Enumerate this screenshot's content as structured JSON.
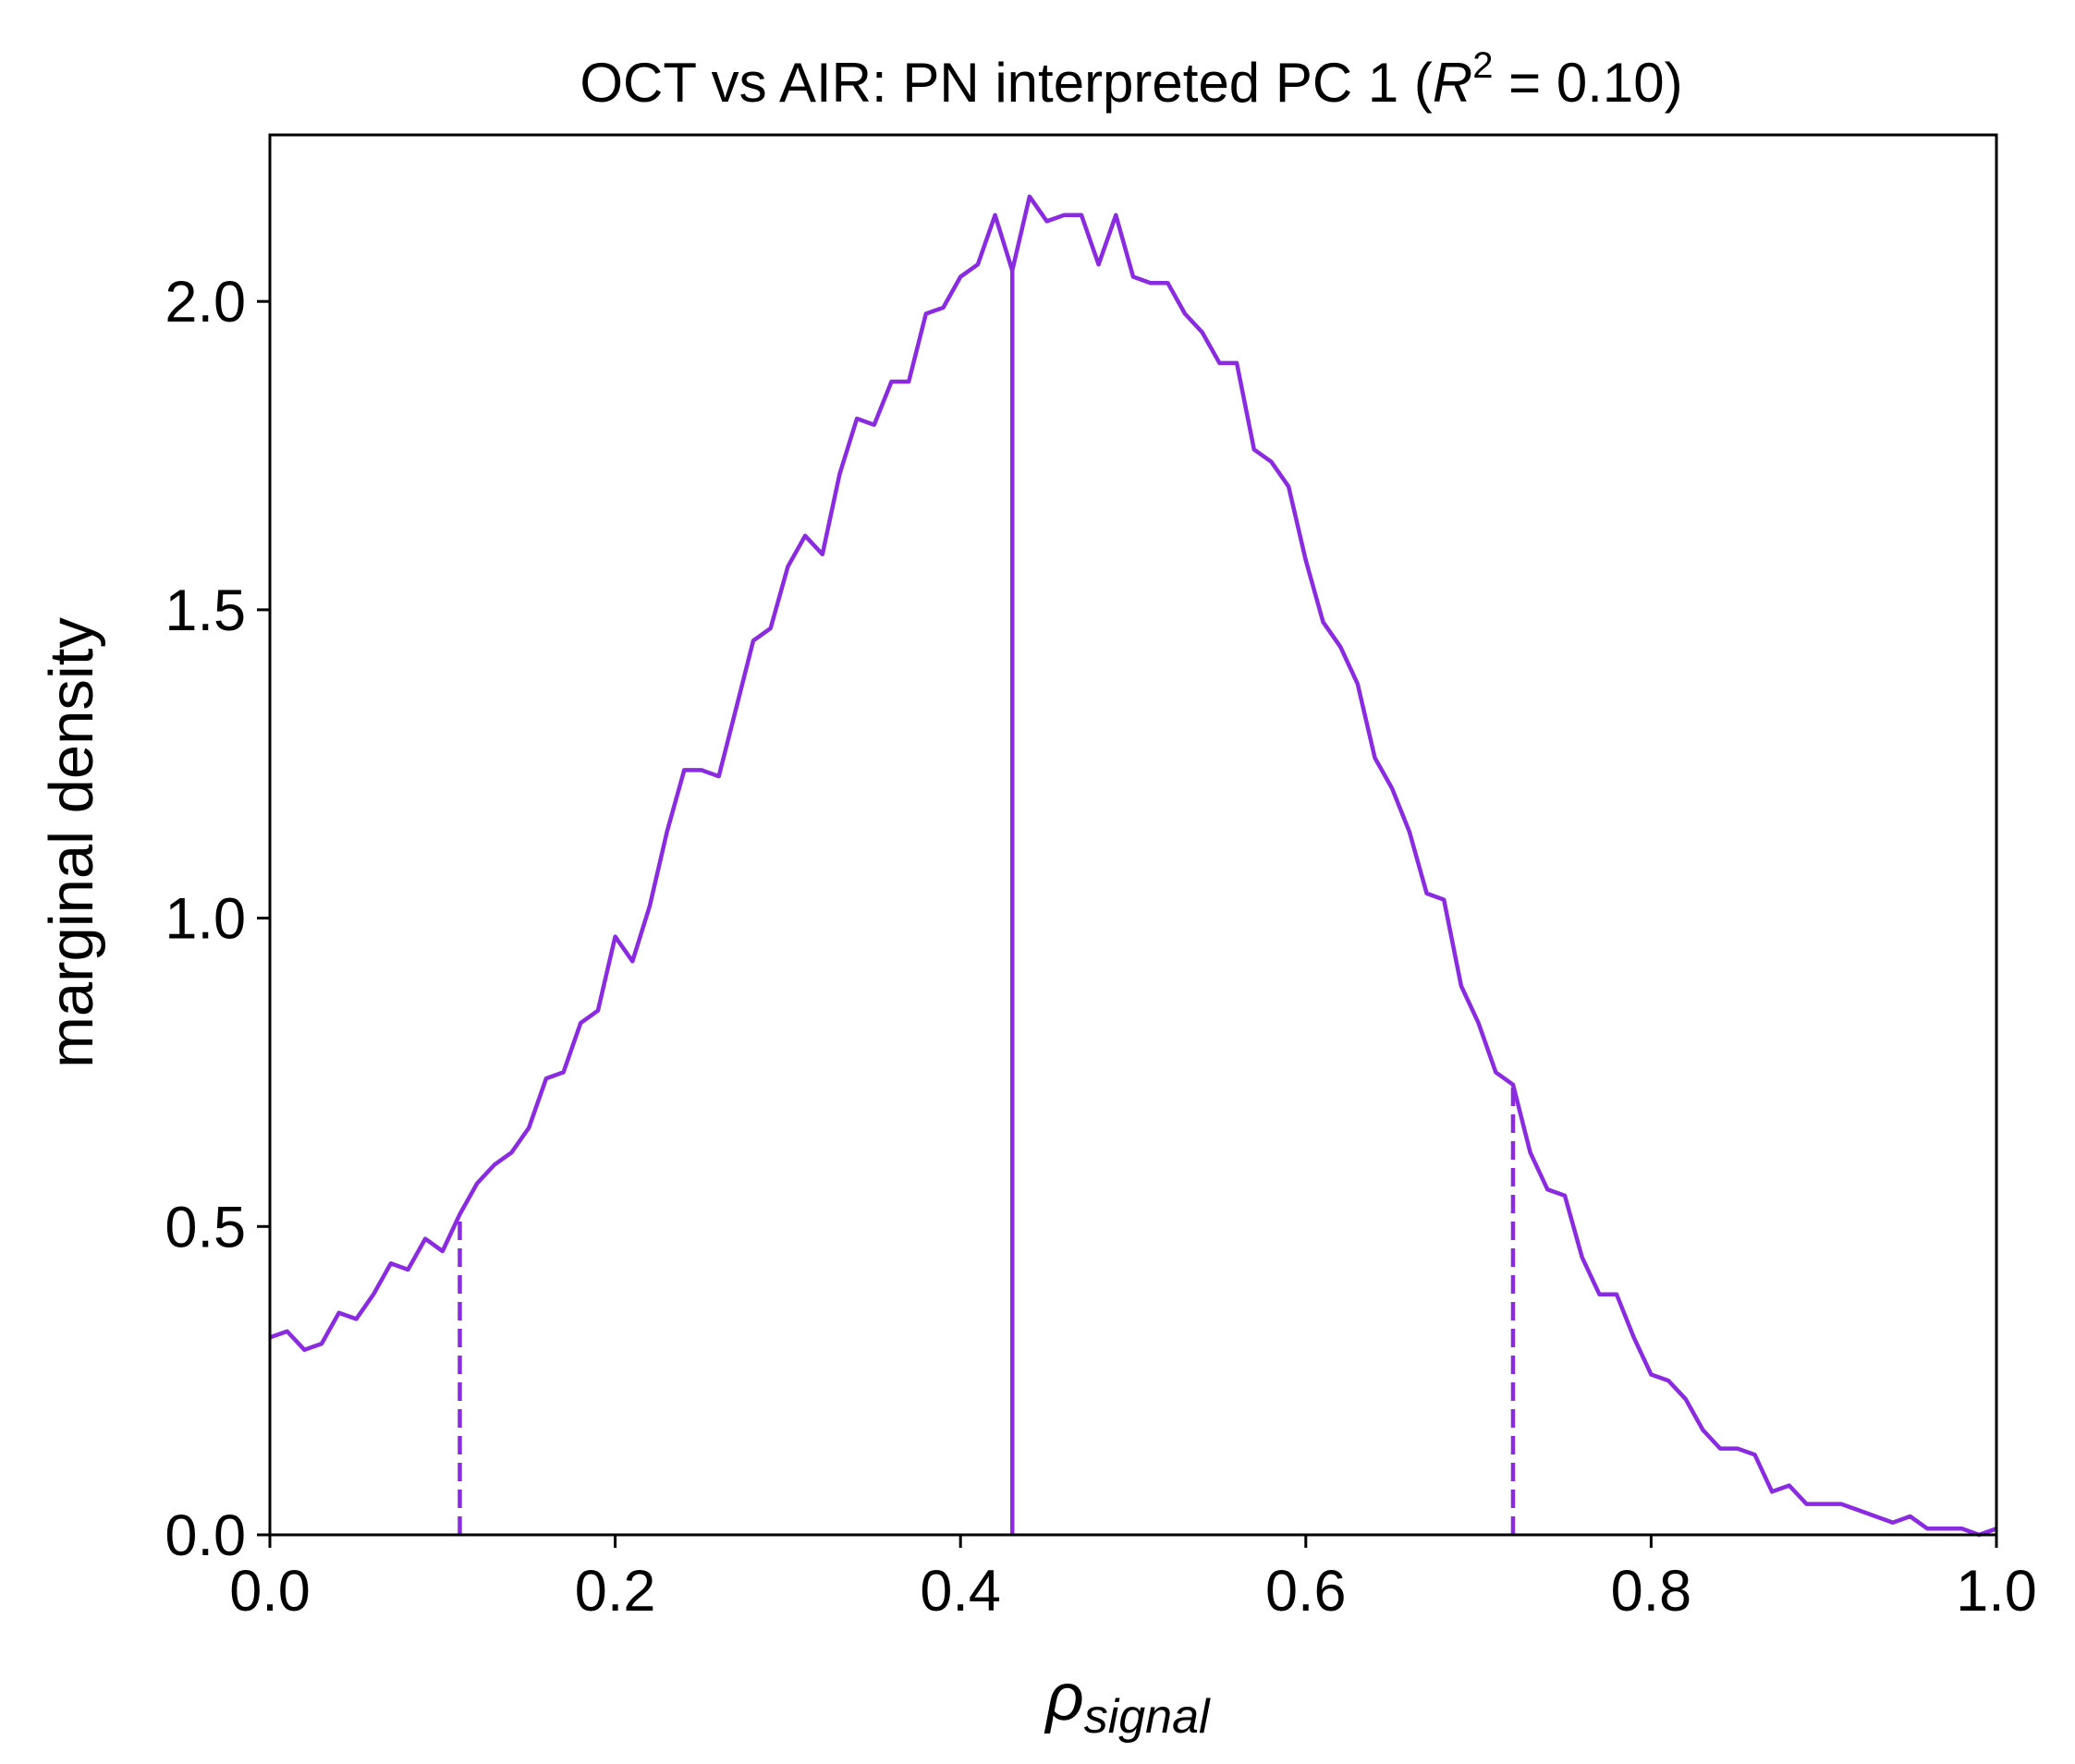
{
  "chart_data": {
    "type": "line",
    "title": {
      "prefix": "OCT vs AIR: PN interpreted PC 1 (",
      "r": "R",
      "exp": "2",
      "suffix": " = 0.10)"
    },
    "xlabel": {
      "main": "ρ",
      "sub": "signal"
    },
    "ylabel": "marginal density",
    "xlim": [
      0,
      1
    ],
    "ylim": [
      0,
      2.27
    ],
    "xticks": [
      0.0,
      0.2,
      0.4,
      0.6,
      0.8,
      1.0
    ],
    "xtick_labels": [
      "0.0",
      "0.2",
      "0.4",
      "0.6",
      "0.8",
      "1.0"
    ],
    "yticks": [
      0.0,
      0.5,
      1.0,
      1.5,
      2.0
    ],
    "ytick_labels": [
      "0.0",
      "0.5",
      "1.0",
      "1.5",
      "2.0"
    ],
    "grid": false,
    "color": "#8a2be2",
    "series": [
      {
        "x": [
          0.0,
          0.01,
          0.02,
          0.03,
          0.04,
          0.05,
          0.06,
          0.07,
          0.08,
          0.09,
          0.1,
          0.11,
          0.12,
          0.13,
          0.14,
          0.15,
          0.16,
          0.17,
          0.18,
          0.19,
          0.2,
          0.21,
          0.22,
          0.23,
          0.24,
          0.25,
          0.26,
          0.27,
          0.28,
          0.29,
          0.3,
          0.31,
          0.32,
          0.33,
          0.34,
          0.35,
          0.36,
          0.37,
          0.38,
          0.39,
          0.4,
          0.41,
          0.42,
          0.43,
          0.44,
          0.45,
          0.46,
          0.47,
          0.48,
          0.49,
          0.5,
          0.51,
          0.52,
          0.53,
          0.54,
          0.55,
          0.56,
          0.57,
          0.58,
          0.59,
          0.6,
          0.61,
          0.62,
          0.63,
          0.64,
          0.65,
          0.66,
          0.67,
          0.68,
          0.69,
          0.7,
          0.71,
          0.72,
          0.73,
          0.74,
          0.75,
          0.76,
          0.77,
          0.78,
          0.79,
          0.8,
          0.81,
          0.82,
          0.83,
          0.84,
          0.85,
          0.86,
          0.87,
          0.88,
          0.89,
          0.9,
          0.91,
          0.92,
          0.93,
          0.94,
          0.95,
          0.96,
          0.97,
          0.98,
          0.99,
          1.0
        ],
        "y": [
          0.32,
          0.33,
          0.3,
          0.31,
          0.36,
          0.35,
          0.39,
          0.44,
          0.43,
          0.48,
          0.46,
          0.52,
          0.57,
          0.6,
          0.62,
          0.66,
          0.74,
          0.75,
          0.83,
          0.85,
          0.97,
          0.93,
          1.02,
          1.14,
          1.24,
          1.24,
          1.23,
          1.34,
          1.45,
          1.47,
          1.57,
          1.62,
          1.59,
          1.72,
          1.81,
          1.8,
          1.87,
          1.87,
          1.98,
          1.99,
          2.04,
          2.06,
          2.14,
          2.05,
          2.17,
          2.13,
          2.14,
          2.14,
          2.06,
          2.14,
          2.04,
          2.03,
          2.03,
          1.98,
          1.95,
          1.9,
          1.9,
          1.76,
          1.74,
          1.7,
          1.58,
          1.48,
          1.44,
          1.38,
          1.26,
          1.21,
          1.14,
          1.04,
          1.03,
          0.89,
          0.83,
          0.75,
          0.73,
          0.62,
          0.56,
          0.55,
          0.45,
          0.39,
          0.39,
          0.32,
          0.26,
          0.25,
          0.22,
          0.17,
          0.14,
          0.14,
          0.13,
          0.07,
          0.08,
          0.05,
          0.05,
          0.05,
          0.04,
          0.03,
          0.02,
          0.03,
          0.01,
          0.01,
          0.01,
          0.0,
          0.01
        ]
      }
    ],
    "vlines": [
      {
        "x": 0.11,
        "style": "dashed"
      },
      {
        "x": 0.43,
        "style": "solid"
      },
      {
        "x": 0.72,
        "style": "dashed"
      }
    ]
  }
}
